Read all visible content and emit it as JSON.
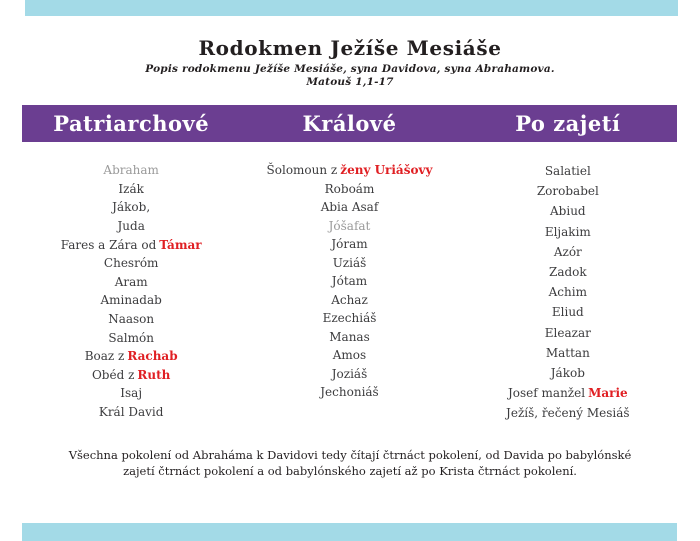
{
  "page": {
    "title": "Rodokmen Ježíše Mesiáše",
    "subtitle": "Popis rodokmenu Ježíše Mesiáše, syna Davidova, syna Abrahamova.",
    "reference": "Matouš 1,1-17",
    "footer": "Všechna pokolení od Abraháma k Davidovi tedy čítají čtrnáct pokolení, od Davida po babylónské zajetí čtrnáct pokolení a od babylónského zajetí až po Krista čtrnáct pokolení."
  },
  "colors": {
    "accent_blue": "#a3dae7",
    "header_purple": "#6b3e91",
    "highlight_red": "#e01f23",
    "muted_gray": "#9a9a9a",
    "text_dark": "#3c3c3e"
  },
  "columns": [
    {
      "header": "Patriarchové",
      "items": [
        {
          "text": "Abraham",
          "muted": true
        },
        {
          "text": "Izák"
        },
        {
          "text": "Jákob,"
        },
        {
          "text": "Juda"
        },
        {
          "pre": "Fares a Zára od",
          "red": "Támar"
        },
        {
          "text": "Chesróm"
        },
        {
          "text": "Aram"
        },
        {
          "text": "Aminadab"
        },
        {
          "text": "Naason"
        },
        {
          "text": "Salmón"
        },
        {
          "pre": "Boaz z",
          "red": "Rachab"
        },
        {
          "pre": "Obéd z",
          "red": "Ruth"
        },
        {
          "text": "Isaj"
        },
        {
          "text": "Král David"
        }
      ]
    },
    {
      "header": "Králové",
      "items": [
        {
          "pre": "Šolomoun z",
          "red": "ženy Uriášovy"
        },
        {
          "text": "Roboám"
        },
        {
          "text": "Abia Asaf"
        },
        {
          "text": "Jóšafat",
          "muted": true
        },
        {
          "text": "Jóram"
        },
        {
          "text": "Uziáš"
        },
        {
          "text": "Jótam"
        },
        {
          "text": "Achaz"
        },
        {
          "text": "Ezechiáš"
        },
        {
          "text": "Manas"
        },
        {
          "text": "Amos"
        },
        {
          "text": "Joziáš"
        },
        {
          "text": "Jechoniáš"
        }
      ]
    },
    {
      "header": "Po zajetí",
      "items": [
        {
          "text": "Salatiel"
        },
        {
          "text": "Zorobabel"
        },
        {
          "text": "Abiud"
        },
        {
          "text": "Eljakim"
        },
        {
          "text": "Azór"
        },
        {
          "text": "Zadok"
        },
        {
          "text": "Achim"
        },
        {
          "text": "Eliud"
        },
        {
          "text": "Eleazar"
        },
        {
          "text": "Mattan"
        },
        {
          "text": "Jákob"
        },
        {
          "pre": "Josef manžel",
          "red": "Marie"
        },
        {
          "text": "Ježíš, řečený Mesiáš"
        }
      ]
    }
  ]
}
